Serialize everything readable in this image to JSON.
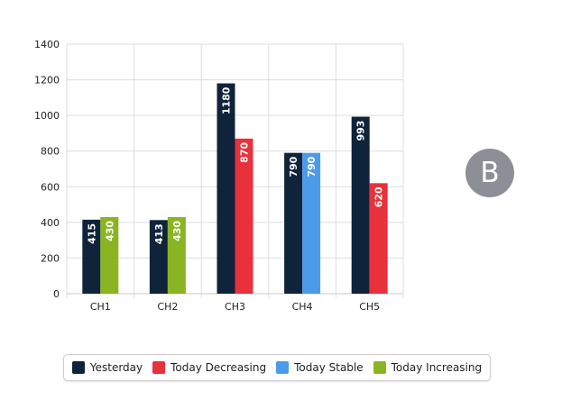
{
  "chart_data": {
    "type": "bar",
    "categories": [
      "CH1",
      "CH2",
      "CH3",
      "CH4",
      "CH5"
    ],
    "ylim": [
      0,
      1400
    ],
    "yticks": [
      0,
      200,
      400,
      600,
      800,
      1000,
      1200,
      1400
    ],
    "grid": true,
    "legend_position": "bottom",
    "bars": [
      [
        {
          "series": "Yesterday",
          "value": 415
        },
        {
          "series": "Today Increasing",
          "value": 430
        }
      ],
      [
        {
          "series": "Yesterday",
          "value": 413
        },
        {
          "series": "Today Increasing",
          "value": 430
        }
      ],
      [
        {
          "series": "Yesterday",
          "value": 1180
        },
        {
          "series": "Today Decreasing",
          "value": 870
        }
      ],
      [
        {
          "series": "Yesterday",
          "value": 790
        },
        {
          "series": "Today Stable",
          "value": 790
        }
      ],
      [
        {
          "series": "Yesterday",
          "value": 993
        },
        {
          "series": "Today Decreasing",
          "value": 620
        }
      ]
    ],
    "series": [
      {
        "name": "Yesterday",
        "color": "#0f233a"
      },
      {
        "name": "Today Decreasing",
        "color": "#e8313a"
      },
      {
        "name": "Today Stable",
        "color": "#4c9be8"
      },
      {
        "name": "Today Increasing",
        "color": "#8ab523"
      }
    ]
  },
  "badge": {
    "label": "B",
    "color": "#8c9096"
  }
}
